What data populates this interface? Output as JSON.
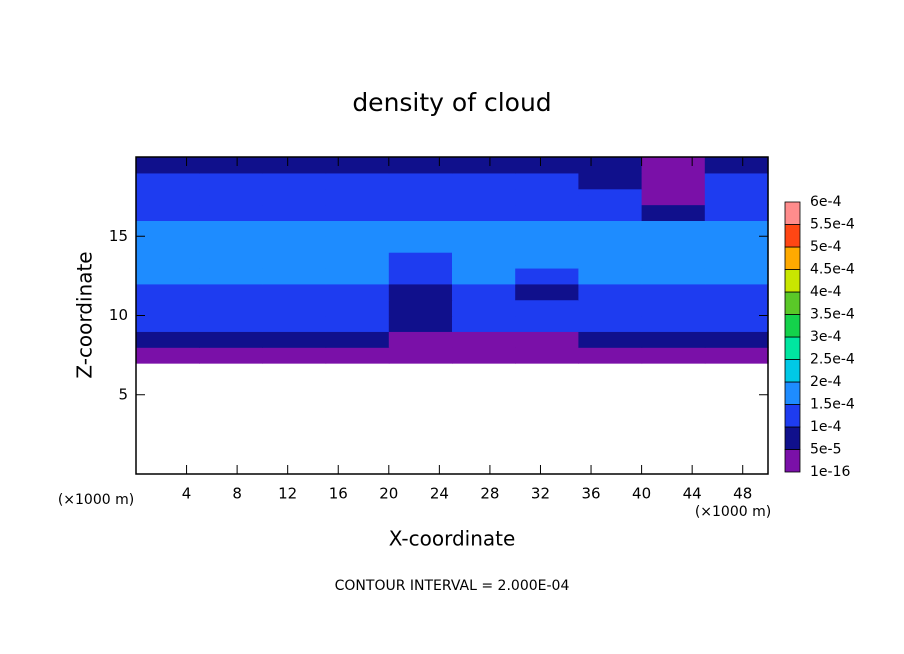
{
  "chart_data": {
    "type": "contour",
    "title": "density of cloud",
    "x_label": "X-coordinate",
    "y_label": "Z-coordinate",
    "x_unit": "(×1000 m)",
    "y_unit": "(×1000 m)",
    "footer": "CONTOUR INTERVAL = 2.000E-04",
    "xlim": [
      0,
      50
    ],
    "ylim": [
      0,
      20
    ],
    "xticks": [
      4,
      8,
      12,
      16,
      20,
      24,
      28,
      32,
      36,
      40,
      44,
      48
    ],
    "yticks": [
      5,
      10,
      15
    ],
    "x_edges": [
      0,
      5,
      10,
      15,
      20,
      25,
      30,
      35,
      40,
      45,
      50
    ],
    "z_edges": [
      7,
      8,
      9,
      10,
      11,
      12,
      13,
      14,
      15,
      16,
      17,
      18,
      19,
      20
    ],
    "field": [
      [
        2e-05,
        2e-05,
        2e-05,
        2e-05,
        2e-05,
        2e-05,
        2e-05,
        2e-05,
        2e-05,
        2e-05
      ],
      [
        7e-05,
        7e-05,
        7e-05,
        7e-05,
        3e-05,
        3e-05,
        3e-05,
        7e-05,
        7e-05,
        7e-05
      ],
      [
        0.00012,
        0.00012,
        0.00012,
        0.00012,
        9e-05,
        0.00012,
        0.00012,
        0.00012,
        0.00012,
        0.00012
      ],
      [
        0.00013,
        0.00013,
        0.00013,
        0.00013,
        9e-05,
        0.00013,
        0.00013,
        0.00013,
        0.00013,
        0.00013
      ],
      [
        0.00014,
        0.00014,
        0.00014,
        0.00014,
        9e-05,
        0.00014,
        9e-05,
        0.00014,
        0.00014,
        0.00014
      ],
      [
        0.00016,
        0.00016,
        0.00016,
        0.00016,
        0.00013,
        0.00016,
        0.00013,
        0.00016,
        0.00016,
        0.00016
      ],
      [
        0.00016,
        0.00016,
        0.00016,
        0.00016,
        0.00013,
        0.00016,
        0.00016,
        0.00016,
        0.00016,
        0.00016
      ],
      [
        0.00016,
        0.00016,
        0.00016,
        0.00016,
        0.00016,
        0.00016,
        0.00016,
        0.00016,
        0.00016,
        0.00016
      ],
      [
        0.00016,
        0.00016,
        0.00016,
        0.00016,
        0.00016,
        0.00016,
        0.00016,
        0.00016,
        0.00016,
        0.00016
      ],
      [
        0.00013,
        0.00013,
        0.00013,
        0.00013,
        0.00013,
        0.00013,
        0.00013,
        0.00013,
        9e-05,
        0.00013
      ],
      [
        0.00012,
        0.00012,
        0.00012,
        0.00012,
        0.00012,
        0.00012,
        0.00012,
        0.00012,
        3e-05,
        0.00012
      ],
      [
        0.00011,
        0.00011,
        0.00011,
        0.00011,
        0.00011,
        0.00011,
        0.00011,
        9e-05,
        3e-05,
        0.00011
      ],
      [
        8e-05,
        8e-05,
        8e-05,
        8e-05,
        8e-05,
        8e-05,
        8e-05,
        8e-05,
        3e-05,
        8e-05
      ]
    ],
    "levels": [
      {
        "value": 1e-16,
        "label": "1e-16"
      },
      {
        "value": 5e-05,
        "label": "5e-5"
      },
      {
        "value": 0.0001,
        "label": "1e-4"
      },
      {
        "value": 0.00015,
        "label": "1.5e-4"
      },
      {
        "value": 0.0002,
        "label": "2e-4"
      },
      {
        "value": 0.00025,
        "label": "2.5e-4"
      },
      {
        "value": 0.0003,
        "label": "3e-4"
      },
      {
        "value": 0.00035,
        "label": "3.5e-4"
      },
      {
        "value": 0.0004,
        "label": "4e-4"
      },
      {
        "value": 0.00045,
        "label": "4.5e-4"
      },
      {
        "value": 0.0005,
        "label": "5e-4"
      },
      {
        "value": 0.00055,
        "label": "5.5e-4"
      },
      {
        "value": 0.0006,
        "label": "6e-4"
      }
    ],
    "colors": [
      "#7a10a8",
      "#10108c",
      "#1e3cf0",
      "#1e8cff",
      "#00c8e6",
      "#00e6a0",
      "#14d24b",
      "#5ac828",
      "#c8e600",
      "#ffaa00",
      "#ff4614",
      "#ff8c8c"
    ]
  }
}
